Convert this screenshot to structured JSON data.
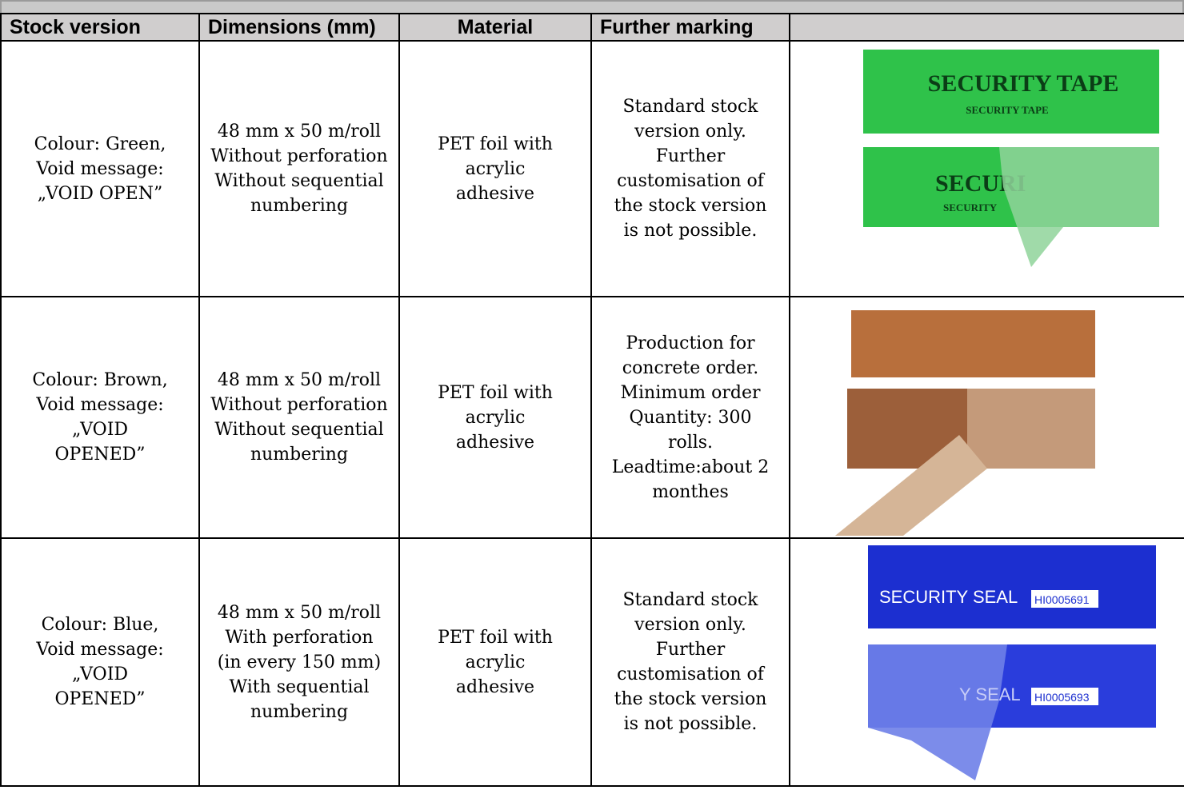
{
  "table": {
    "header": [
      "Stock version",
      "Dimensions (mm)",
      "Material",
      "Further marking"
    ],
    "rows": [
      {
        "cells": [
          [
            "Colour: Green,",
            "Void message:",
            "„VOID OPEN”"
          ],
          [
            "48 mm x 50 m/roll",
            "Without perforation",
            "Without sequential",
            "numbering"
          ],
          [
            "PET foil with",
            "acrylic",
            "adhesive"
          ],
          [
            "Standard stock",
            "version only.",
            "Further",
            "customisation of",
            "the stock version",
            "is not possible."
          ]
        ],
        "image_texts": [
          "SECURITY TAPE",
          "SECURITY TAPE",
          "SECURI",
          "SECURITY"
        ]
      },
      {
        "cells": [
          [
            "Colour: Brown,",
            "Void message:",
            "„VOID",
            "OPENED”"
          ],
          [
            "48 mm x 50 m/roll",
            "Without perforation",
            "Without sequential",
            "numbering"
          ],
          [
            "PET foil with",
            "acrylic",
            "adhesive"
          ],
          [
            "Production for",
            "concrete order.",
            "Minimum order",
            "Quantity: 300",
            "rolls.",
            "Leadtime:about 2",
            "monthes"
          ]
        ],
        "image_texts": []
      },
      {
        "cells": [
          [
            "Colour: Blue,",
            "Void message:",
            "„VOID",
            "OPENED”"
          ],
          [
            "48 mm x 50 m/roll",
            "With perforation",
            "(in every 150 mm)",
            "With sequential",
            "numbering"
          ],
          [
            "PET foil with",
            "acrylic",
            "adhesive"
          ],
          [
            "Standard stock",
            "version only.",
            "Further",
            "customisation of",
            "the stock version",
            "is not possible."
          ]
        ],
        "image_texts": [
          "SECURITY SEAL",
          "HI0005691",
          "Y SEAL",
          "HI0005693"
        ]
      }
    ]
  }
}
